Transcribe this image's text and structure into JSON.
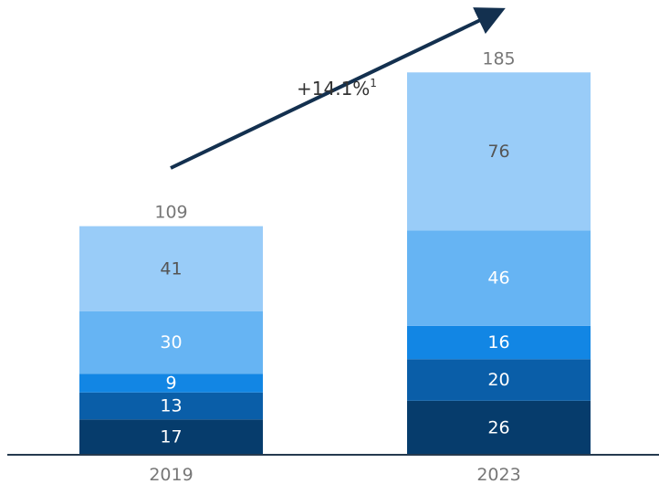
{
  "chart_data": {
    "type": "bar",
    "stacked": true,
    "categories": [
      "2019",
      "2023"
    ],
    "series": [
      {
        "values": [
          17,
          26
        ],
        "color": "#063c6c",
        "label_color": "#ffffff"
      },
      {
        "values": [
          13,
          20
        ],
        "color": "#0a5ea8",
        "label_color": "#ffffff"
      },
      {
        "values": [
          9,
          16
        ],
        "color": "#1286e4",
        "label_color": "#ffffff"
      },
      {
        "values": [
          30,
          46
        ],
        "color": "#66b4f3",
        "label_color": "#ffffff"
      },
      {
        "values": [
          41,
          76
        ],
        "color": "#99ccf8",
        "label_color": "#555555"
      }
    ],
    "totals": [
      "109",
      "185"
    ],
    "ylim": [
      0,
      185
    ],
    "grid": false,
    "legend": "none",
    "annotation": {
      "text": "+14.1%",
      "superscript": "1",
      "type": "growth-arrow"
    }
  }
}
